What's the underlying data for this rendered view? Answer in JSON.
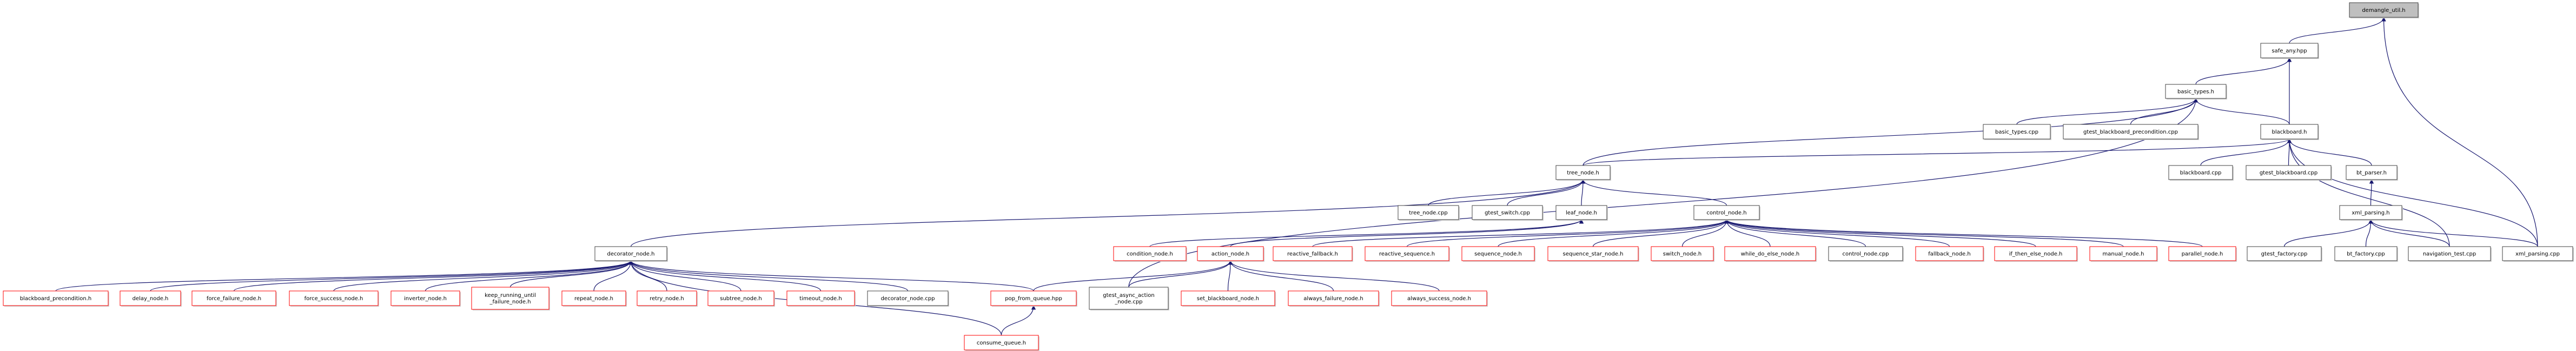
{
  "colors": {
    "edge": "#191970",
    "red_border": "#ff0000",
    "black_border": "#404040",
    "root_fill": "#bfbfbf"
  },
  "nodes": [
    {
      "id": "demangle",
      "label": [
        "demangle_util.h"
      ],
      "kind": "root"
    },
    {
      "id": "safe_any",
      "label": [
        "safe_any.hpp"
      ],
      "kind": "black"
    },
    {
      "id": "basic_types_h",
      "label": [
        "basic_types.h"
      ],
      "kind": "black"
    },
    {
      "id": "basic_types_cpp",
      "label": [
        "basic_types.cpp"
      ],
      "kind": "black"
    },
    {
      "id": "gtest_bb_pre",
      "label": [
        "gtest_blackboard_precondition.cpp"
      ],
      "kind": "black"
    },
    {
      "id": "blackboard_h",
      "label": [
        "blackboard.h"
      ],
      "kind": "black"
    },
    {
      "id": "tree_node_h",
      "label": [
        "tree_node.h"
      ],
      "kind": "black"
    },
    {
      "id": "blackboard_cpp",
      "label": [
        "blackboard.cpp"
      ],
      "kind": "black"
    },
    {
      "id": "gtest_blackboard",
      "label": [
        "gtest_blackboard.cpp"
      ],
      "kind": "black"
    },
    {
      "id": "bt_parser",
      "label": [
        "bt_parser.h"
      ],
      "kind": "black"
    },
    {
      "id": "tree_node_cpp",
      "label": [
        "tree_node.cpp"
      ],
      "kind": "black"
    },
    {
      "id": "gtest_switch",
      "label": [
        "gtest_switch.cpp"
      ],
      "kind": "black"
    },
    {
      "id": "leaf_node",
      "label": [
        "leaf_node.h"
      ],
      "kind": "black"
    },
    {
      "id": "control_node_h",
      "label": [
        "control_node.h"
      ],
      "kind": "black"
    },
    {
      "id": "xml_parsing_h",
      "label": [
        "xml_parsing.h"
      ],
      "kind": "black"
    },
    {
      "id": "decorator_node_h",
      "label": [
        "decorator_node.h"
      ],
      "kind": "black"
    },
    {
      "id": "condition_node",
      "label": [
        "condition_node.h"
      ],
      "kind": "red"
    },
    {
      "id": "action_node",
      "label": [
        "action_node.h"
      ],
      "kind": "red"
    },
    {
      "id": "reactive_fallback",
      "label": [
        "reactive_fallback.h"
      ],
      "kind": "red"
    },
    {
      "id": "reactive_sequence",
      "label": [
        "reactive_sequence.h"
      ],
      "kind": "red"
    },
    {
      "id": "sequence_node",
      "label": [
        "sequence_node.h"
      ],
      "kind": "red"
    },
    {
      "id": "sequence_star_node",
      "label": [
        "sequence_star_node.h"
      ],
      "kind": "red"
    },
    {
      "id": "switch_node",
      "label": [
        "switch_node.h"
      ],
      "kind": "red"
    },
    {
      "id": "while_do_else",
      "label": [
        "while_do_else_node.h"
      ],
      "kind": "red"
    },
    {
      "id": "control_node_cpp",
      "label": [
        "control_node.cpp"
      ],
      "kind": "black"
    },
    {
      "id": "fallback_node",
      "label": [
        "fallback_node.h"
      ],
      "kind": "red"
    },
    {
      "id": "if_then_else",
      "label": [
        "if_then_else_node.h"
      ],
      "kind": "red"
    },
    {
      "id": "manual_node",
      "label": [
        "manual_node.h"
      ],
      "kind": "red"
    },
    {
      "id": "parallel_node",
      "label": [
        "parallel_node.h"
      ],
      "kind": "red"
    },
    {
      "id": "gtest_factory",
      "label": [
        "gtest_factory.cpp"
      ],
      "kind": "black"
    },
    {
      "id": "bt_factory",
      "label": [
        "bt_factory.cpp"
      ],
      "kind": "black"
    },
    {
      "id": "navigation_test",
      "label": [
        "navigation_test.cpp"
      ],
      "kind": "black"
    },
    {
      "id": "xml_parsing_cpp",
      "label": [
        "xml_parsing.cpp"
      ],
      "kind": "black"
    },
    {
      "id": "bb_precondition",
      "label": [
        "blackboard_precondition.h"
      ],
      "kind": "red"
    },
    {
      "id": "delay_node",
      "label": [
        "delay_node.h"
      ],
      "kind": "red"
    },
    {
      "id": "force_failure",
      "label": [
        "force_failure_node.h"
      ],
      "kind": "red"
    },
    {
      "id": "force_success",
      "label": [
        "force_success_node.h"
      ],
      "kind": "red"
    },
    {
      "id": "inverter_node",
      "label": [
        "inverter_node.h"
      ],
      "kind": "red"
    },
    {
      "id": "keep_running",
      "label": [
        "keep_running_until",
        "_failure_node.h"
      ],
      "kind": "red"
    },
    {
      "id": "repeat_node",
      "label": [
        "repeat_node.h"
      ],
      "kind": "red"
    },
    {
      "id": "retry_node",
      "label": [
        "retry_node.h"
      ],
      "kind": "red"
    },
    {
      "id": "subtree_node",
      "label": [
        "subtree_node.h"
      ],
      "kind": "red"
    },
    {
      "id": "timeout_node",
      "label": [
        "timeout_node.h"
      ],
      "kind": "red"
    },
    {
      "id": "decorator_node_cpp",
      "label": [
        "decorator_node.cpp"
      ],
      "kind": "black"
    },
    {
      "id": "pop_from_queue",
      "label": [
        "pop_from_queue.hpp"
      ],
      "kind": "red"
    },
    {
      "id": "gtest_async",
      "label": [
        "gtest_async_action",
        "_node.cpp"
      ],
      "kind": "black"
    },
    {
      "id": "set_blackboard",
      "label": [
        "set_blackboard_node.h"
      ],
      "kind": "red"
    },
    {
      "id": "always_failure",
      "label": [
        "always_failure_node.h"
      ],
      "kind": "red"
    },
    {
      "id": "always_success",
      "label": [
        "always_success_node.h"
      ],
      "kind": "red"
    },
    {
      "id": "consume_queue",
      "label": [
        "consume_queue.h"
      ],
      "kind": "red"
    }
  ],
  "edges": [
    [
      "safe_any",
      "demangle"
    ],
    [
      "xml_parsing_cpp",
      "demangle"
    ],
    [
      "basic_types_h",
      "safe_any"
    ],
    [
      "blackboard_h",
      "safe_any"
    ],
    [
      "basic_types_cpp",
      "basic_types_h"
    ],
    [
      "gtest_bb_pre",
      "basic_types_h"
    ],
    [
      "blackboard_h",
      "basic_types_h"
    ],
    [
      "tree_node_h",
      "basic_types_h"
    ],
    [
      "gtest_async",
      "basic_types_h"
    ],
    [
      "tree_node_h",
      "blackboard_h"
    ],
    [
      "blackboard_cpp",
      "blackboard_h"
    ],
    [
      "gtest_blackboard",
      "blackboard_h"
    ],
    [
      "bt_parser",
      "blackboard_h"
    ],
    [
      "navigation_test",
      "blackboard_h"
    ],
    [
      "xml_parsing_cpp",
      "blackboard_h"
    ],
    [
      "tree_node_cpp",
      "tree_node_h"
    ],
    [
      "gtest_switch",
      "tree_node_h"
    ],
    [
      "leaf_node",
      "tree_node_h"
    ],
    [
      "control_node_h",
      "tree_node_h"
    ],
    [
      "decorator_node_h",
      "tree_node_h"
    ],
    [
      "xml_parsing_h",
      "bt_parser"
    ],
    [
      "condition_node",
      "leaf_node"
    ],
    [
      "action_node",
      "leaf_node"
    ],
    [
      "reactive_fallback",
      "control_node_h"
    ],
    [
      "reactive_sequence",
      "control_node_h"
    ],
    [
      "sequence_node",
      "control_node_h"
    ],
    [
      "sequence_star_node",
      "control_node_h"
    ],
    [
      "switch_node",
      "control_node_h"
    ],
    [
      "while_do_else",
      "control_node_h"
    ],
    [
      "control_node_cpp",
      "control_node_h"
    ],
    [
      "fallback_node",
      "control_node_h"
    ],
    [
      "if_then_else",
      "control_node_h"
    ],
    [
      "manual_node",
      "control_node_h"
    ],
    [
      "parallel_node",
      "control_node_h"
    ],
    [
      "gtest_factory",
      "xml_parsing_h"
    ],
    [
      "bt_factory",
      "xml_parsing_h"
    ],
    [
      "navigation_test",
      "xml_parsing_h"
    ],
    [
      "xml_parsing_cpp",
      "xml_parsing_h"
    ],
    [
      "bb_precondition",
      "decorator_node_h"
    ],
    [
      "delay_node",
      "decorator_node_h"
    ],
    [
      "force_failure",
      "decorator_node_h"
    ],
    [
      "force_success",
      "decorator_node_h"
    ],
    [
      "inverter_node",
      "decorator_node_h"
    ],
    [
      "keep_running",
      "decorator_node_h"
    ],
    [
      "repeat_node",
      "decorator_node_h"
    ],
    [
      "retry_node",
      "decorator_node_h"
    ],
    [
      "subtree_node",
      "decorator_node_h"
    ],
    [
      "timeout_node",
      "decorator_node_h"
    ],
    [
      "decorator_node_cpp",
      "decorator_node_h"
    ],
    [
      "pop_from_queue",
      "decorator_node_h"
    ],
    [
      "consume_queue",
      "decorator_node_h"
    ],
    [
      "pop_from_queue",
      "action_node"
    ],
    [
      "gtest_async",
      "action_node"
    ],
    [
      "set_blackboard",
      "action_node"
    ],
    [
      "always_failure",
      "action_node"
    ],
    [
      "always_success",
      "action_node"
    ],
    [
      "consume_queue",
      "pop_from_queue"
    ]
  ]
}
